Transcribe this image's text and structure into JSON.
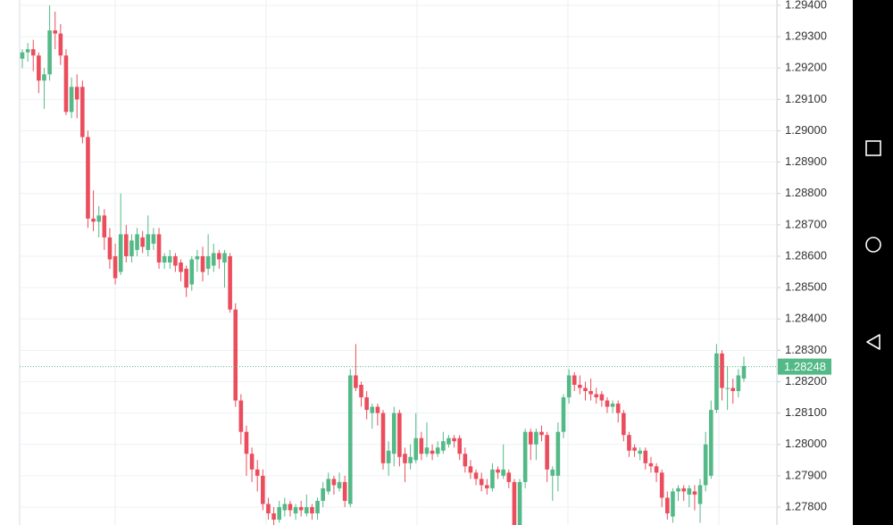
{
  "chart_data": {
    "type": "candlestick",
    "up_color": "#53b987",
    "down_color": "#eb4d5c",
    "grid": true,
    "ylim": [
      1.27743,
      1.29417
    ],
    "yticks": [
      {
        "value": 1.294,
        "label": "1.29400"
      },
      {
        "value": 1.293,
        "label": "1.29300"
      },
      {
        "value": 1.292,
        "label": "1.29200"
      },
      {
        "value": 1.291,
        "label": "1.29100"
      },
      {
        "value": 1.29,
        "label": "1.29000"
      },
      {
        "value": 1.289,
        "label": "1.28900"
      },
      {
        "value": 1.288,
        "label": "1.28800"
      },
      {
        "value": 1.287,
        "label": "1.28700"
      },
      {
        "value": 1.286,
        "label": "1.28600"
      },
      {
        "value": 1.285,
        "label": "1.28500"
      },
      {
        "value": 1.284,
        "label": "1.28400"
      },
      {
        "value": 1.283,
        "label": "1.28300"
      },
      {
        "value": 1.282,
        "label": "1.28200"
      },
      {
        "value": 1.281,
        "label": "1.28100"
      },
      {
        "value": 1.28,
        "label": "1.28000"
      },
      {
        "value": 1.279,
        "label": "1.27900"
      },
      {
        "value": 1.278,
        "label": "1.27800"
      }
    ],
    "last_price": {
      "value": 1.28248,
      "label": "1.28248"
    },
    "candles": [
      [
        1.2923,
        1.2926,
        1.292,
        1.2925
      ],
      [
        1.2925,
        1.2928,
        1.2922,
        1.2926
      ],
      [
        1.2926,
        1.2929,
        1.2919,
        1.2924
      ],
      [
        1.2924,
        1.2925,
        1.2912,
        1.2916
      ],
      [
        1.2916,
        1.292,
        1.2907,
        1.2918
      ],
      [
        1.2918,
        1.294,
        1.2916,
        1.2932
      ],
      [
        1.2932,
        1.2938,
        1.2926,
        1.2931
      ],
      [
        1.2931,
        1.2934,
        1.2921,
        1.2924
      ],
      [
        1.2924,
        1.2926,
        1.2905,
        1.2906
      ],
      [
        1.2906,
        1.2917,
        1.2904,
        1.2914
      ],
      [
        1.2914,
        1.2918,
        1.2904,
        1.291
      ],
      [
        1.2914,
        1.2916,
        1.2896,
        1.2898
      ],
      [
        1.2898,
        1.29,
        1.2869,
        1.2872
      ],
      [
        1.2872,
        1.2881,
        1.2868,
        1.2871
      ],
      [
        1.2871,
        1.2876,
        1.2866,
        1.2873
      ],
      [
        1.2873,
        1.2875,
        1.2862,
        1.2866
      ],
      [
        1.2866,
        1.2869,
        1.2856,
        1.2859
      ],
      [
        1.286,
        1.2864,
        1.2851,
        1.2853
      ],
      [
        1.2855,
        1.288,
        1.2854,
        1.2867
      ],
      [
        1.2867,
        1.287,
        1.2858,
        1.286
      ],
      [
        1.286,
        1.2867,
        1.2858,
        1.2865
      ],
      [
        1.2862,
        1.2869,
        1.286,
        1.2867
      ],
      [
        1.2866,
        1.2868,
        1.2861,
        1.2863
      ],
      [
        1.2862,
        1.2873,
        1.286,
        1.2867
      ],
      [
        1.2864,
        1.2869,
        1.2862,
        1.2867
      ],
      [
        1.2867,
        1.2869,
        1.2856,
        1.2858
      ],
      [
        1.2858,
        1.2861,
        1.2856,
        1.286
      ],
      [
        1.2858,
        1.2862,
        1.2856,
        1.286
      ],
      [
        1.286,
        1.2861,
        1.2855,
        1.2857
      ],
      [
        1.2858,
        1.2859,
        1.2852,
        1.2855
      ],
      [
        1.2856,
        1.2857,
        1.2847,
        1.285
      ],
      [
        1.2851,
        1.286,
        1.2849,
        1.2859
      ],
      [
        1.2859,
        1.2862,
        1.2855,
        1.286
      ],
      [
        1.286,
        1.2863,
        1.2852,
        1.2855
      ],
      [
        1.2856,
        1.2867,
        1.2854,
        1.286
      ],
      [
        1.2857,
        1.2864,
        1.2855,
        1.2861
      ],
      [
        1.2861,
        1.2862,
        1.2856,
        1.2859
      ],
      [
        1.2858,
        1.2862,
        1.285,
        1.2861
      ],
      [
        1.286,
        1.2861,
        1.2842,
        1.2843
      ],
      [
        1.2843,
        1.2845,
        1.2812,
        1.2814
      ],
      [
        1.2814,
        1.2816,
        1.28,
        1.2804
      ],
      [
        1.2804,
        1.2806,
        1.279,
        1.2797
      ],
      [
        1.2797,
        1.2799,
        1.2788,
        1.2792
      ],
      [
        1.2792,
        1.2795,
        1.2785,
        1.279
      ],
      [
        1.279,
        1.2792,
        1.2779,
        1.2781
      ],
      [
        1.2781,
        1.2783,
        1.2776,
        1.2778
      ],
      [
        1.2778,
        1.278,
        1.2774,
        1.2776
      ],
      [
        1.2776,
        1.2782,
        1.2775,
        1.278
      ],
      [
        1.2779,
        1.2783,
        1.2777,
        1.2781
      ],
      [
        1.2781,
        1.2782,
        1.2777,
        1.2779
      ],
      [
        1.2778,
        1.2781,
        1.2776,
        1.278
      ],
      [
        1.278,
        1.2782,
        1.2777,
        1.2779
      ],
      [
        1.2778,
        1.2784,
        1.2777,
        1.278
      ],
      [
        1.278,
        1.2781,
        1.2776,
        1.2778
      ],
      [
        1.2778,
        1.2783,
        1.2776,
        1.2782
      ],
      [
        1.2782,
        1.2788,
        1.278,
        1.2786
      ],
      [
        1.2785,
        1.2791,
        1.2784,
        1.2789
      ],
      [
        1.2789,
        1.279,
        1.2784,
        1.2787
      ],
      [
        1.2786,
        1.2791,
        1.2785,
        1.2788
      ],
      [
        1.2788,
        1.279,
        1.278,
        1.2782
      ],
      [
        1.2781,
        1.2824,
        1.278,
        1.2822
      ],
      [
        1.2822,
        1.2832,
        1.2817,
        1.2818
      ],
      [
        1.2819,
        1.282,
        1.2812,
        1.2815
      ],
      [
        1.2815,
        1.2817,
        1.2808,
        1.2811
      ],
      [
        1.281,
        1.2813,
        1.2805,
        1.2812
      ],
      [
        1.2812,
        1.2813,
        1.2806,
        1.281
      ],
      [
        1.281,
        1.2811,
        1.2792,
        1.2794
      ],
      [
        1.2794,
        1.2801,
        1.279,
        1.2798
      ],
      [
        1.2797,
        1.2812,
        1.2793,
        1.281
      ],
      [
        1.281,
        1.2811,
        1.2793,
        1.2796
      ],
      [
        1.2797,
        1.2799,
        1.2788,
        1.2794
      ],
      [
        1.2794,
        1.28,
        1.2792,
        1.2796
      ],
      [
        1.2795,
        1.281,
        1.2794,
        1.2802
      ],
      [
        1.2802,
        1.2804,
        1.2795,
        1.2797
      ],
      [
        1.2797,
        1.2807,
        1.2796,
        1.2799
      ],
      [
        1.2798,
        1.28,
        1.2795,
        1.2797
      ],
      [
        1.2797,
        1.2801,
        1.2796,
        1.2799
      ],
      [
        1.2798,
        1.2804,
        1.2797,
        1.2801
      ],
      [
        1.28,
        1.2803,
        1.2799,
        1.2802
      ],
      [
        1.2802,
        1.2803,
        1.2799,
        1.2801
      ],
      [
        1.2802,
        1.2803,
        1.2795,
        1.2797
      ],
      [
        1.2797,
        1.2799,
        1.2791,
        1.2793
      ],
      [
        1.2793,
        1.2795,
        1.2789,
        1.2791
      ],
      [
        1.2791,
        1.2792,
        1.2787,
        1.2789
      ],
      [
        1.2789,
        1.2791,
        1.2785,
        1.2787
      ],
      [
        1.2787,
        1.2789,
        1.2784,
        1.2786
      ],
      [
        1.2786,
        1.2794,
        1.2785,
        1.2792
      ],
      [
        1.2792,
        1.2793,
        1.2789,
        1.2791
      ],
      [
        1.279,
        1.28,
        1.2789,
        1.2792
      ],
      [
        1.2791,
        1.2792,
        1.2786,
        1.2788
      ],
      [
        1.2788,
        1.2789,
        1.277,
        1.2774
      ],
      [
        1.2774,
        1.2789,
        1.2772,
        1.2788
      ],
      [
        1.2788,
        1.2805,
        1.2786,
        1.2804
      ],
      [
        1.2804,
        1.2805,
        1.2795,
        1.28
      ],
      [
        1.28,
        1.2805,
        1.2795,
        1.2804
      ],
      [
        1.2804,
        1.2806,
        1.2801,
        1.2803
      ],
      [
        1.2803,
        1.2804,
        1.2788,
        1.2792
      ],
      [
        1.279,
        1.2793,
        1.2782,
        1.2792
      ],
      [
        1.279,
        1.2807,
        1.2785,
        1.2804
      ],
      [
        1.2804,
        1.2816,
        1.2802,
        1.2815
      ],
      [
        1.2815,
        1.2824,
        1.2813,
        1.2822
      ],
      [
        1.2822,
        1.2823,
        1.2817,
        1.2819
      ],
      [
        1.2819,
        1.2822,
        1.2816,
        1.2818
      ],
      [
        1.2818,
        1.282,
        1.2814,
        1.2817
      ],
      [
        1.2817,
        1.2821,
        1.2814,
        1.2816
      ],
      [
        1.2816,
        1.2818,
        1.2813,
        1.2815
      ],
      [
        1.2816,
        1.2817,
        1.2812,
        1.2814
      ],
      [
        1.2814,
        1.2815,
        1.281,
        1.2812
      ],
      [
        1.2812,
        1.2814,
        1.281,
        1.2813
      ],
      [
        1.2813,
        1.2814,
        1.2807,
        1.281
      ],
      [
        1.281,
        1.2811,
        1.2801,
        1.2803
      ],
      [
        1.2803,
        1.2804,
        1.2796,
        1.2798
      ],
      [
        1.2799,
        1.28,
        1.2796,
        1.2798
      ],
      [
        1.2797,
        1.2799,
        1.2795,
        1.2798
      ],
      [
        1.2798,
        1.2799,
        1.2792,
        1.2794
      ],
      [
        1.2794,
        1.2796,
        1.2791,
        1.2793
      ],
      [
        1.2793,
        1.2794,
        1.2788,
        1.2791
      ],
      [
        1.2791,
        1.2792,
        1.278,
        1.2783
      ],
      [
        1.2783,
        1.2785,
        1.2776,
        1.2778
      ],
      [
        1.2777,
        1.2786,
        1.2775,
        1.2785
      ],
      [
        1.2785,
        1.2787,
        1.2782,
        1.2786
      ],
      [
        1.2786,
        1.2787,
        1.2782,
        1.2785
      ],
      [
        1.2784,
        1.2787,
        1.278,
        1.2786
      ],
      [
        1.2785,
        1.2787,
        1.2779,
        1.2784
      ],
      [
        1.2781,
        1.2789,
        1.2775,
        1.2787
      ],
      [
        1.2787,
        1.2804,
        1.2785,
        1.28
      ],
      [
        1.279,
        1.2814,
        1.2789,
        1.2811
      ],
      [
        1.2811,
        1.2832,
        1.281,
        1.2829
      ],
      [
        1.2829,
        1.283,
        1.2814,
        1.2818
      ],
      [
        1.2818,
        1.2825,
        1.2811,
        1.2818
      ],
      [
        1.2818,
        1.2821,
        1.2813,
        1.2817
      ],
      [
        1.2817,
        1.2824,
        1.2815,
        1.2822
      ],
      [
        1.2821,
        1.2828,
        1.282,
        1.2825
      ]
    ]
  }
}
